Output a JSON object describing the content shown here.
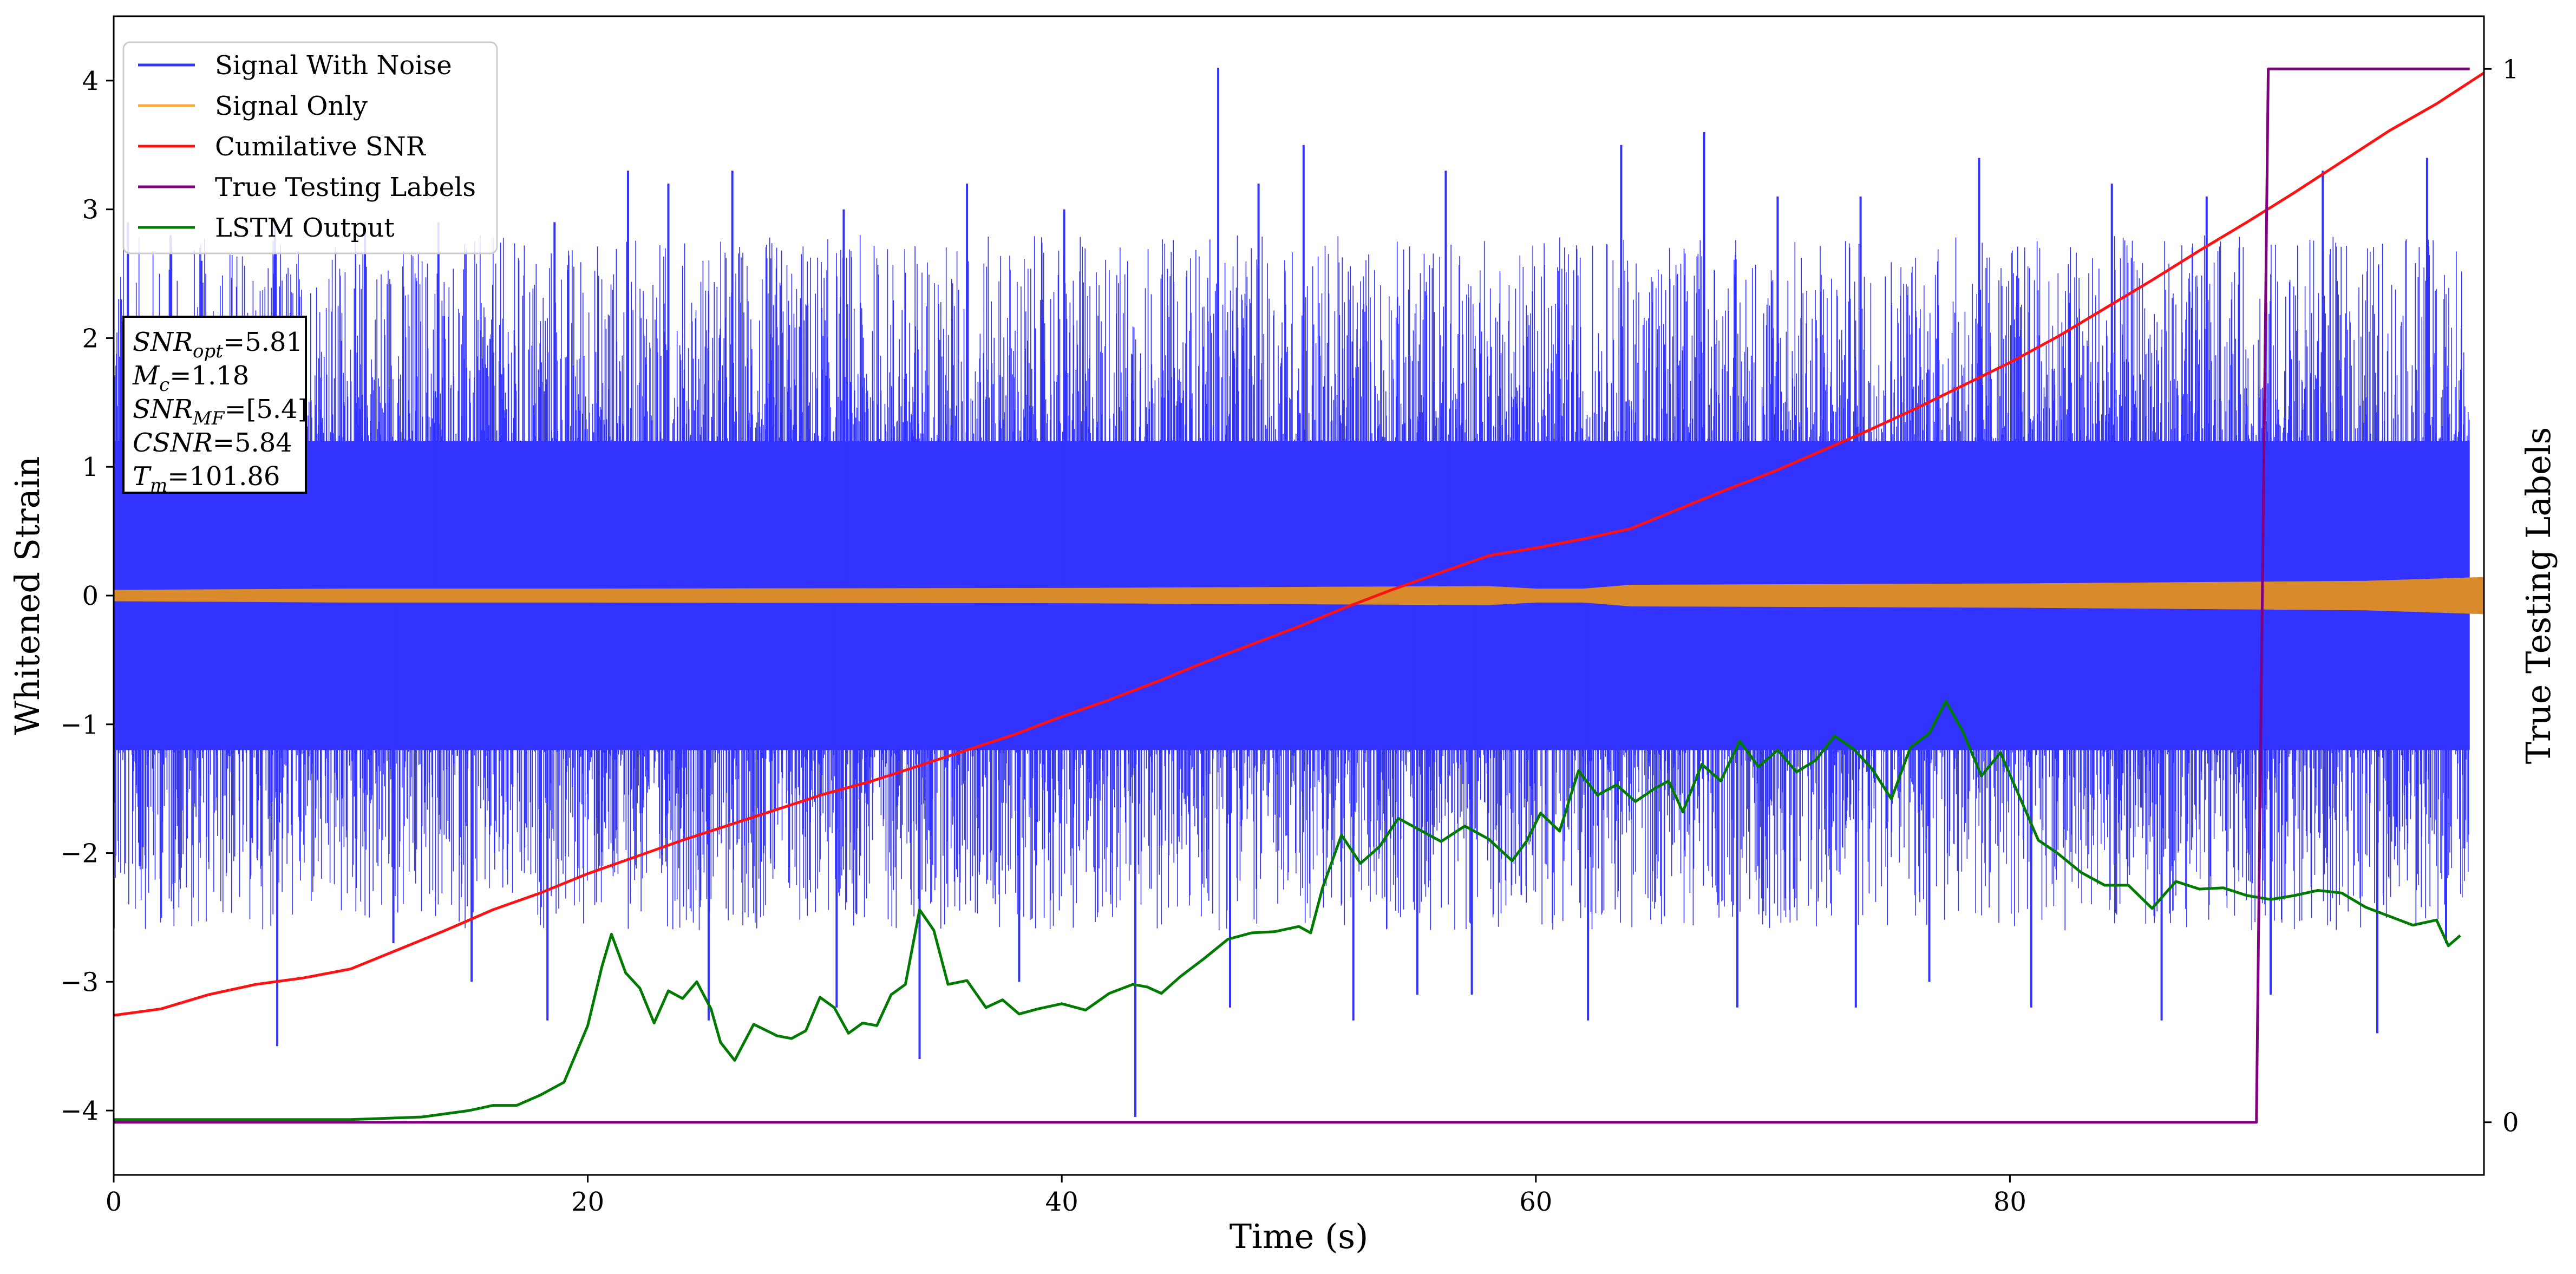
{
  "chart_data": {
    "type": "line",
    "xlabel": "Time (s)",
    "ylabel": "Whitened Strain",
    "ylabel_right": "True Testing Labels",
    "xlim": [
      0,
      100
    ],
    "ylim": [
      -4.5,
      4.5
    ],
    "ylim_right": [
      -0.05,
      1.05
    ],
    "x_ticks": [
      0,
      20,
      40,
      60,
      80
    ],
    "y_ticks": [
      -4,
      -3,
      -2,
      -1,
      0,
      1,
      2,
      3,
      4
    ],
    "y_ticks_right": [
      0,
      1
    ],
    "grid": false,
    "legend_position": "top-left",
    "legend": [
      "Signal With Noise",
      "Signal Only",
      "Cumilative SNR",
      "True Testing Labels",
      "LSTM Output"
    ],
    "info_box": {
      "snr_opt": {
        "base": "SNR",
        "sub": "opt",
        "value": "=5.81"
      },
      "mc": {
        "base": "M",
        "sub": "c",
        "value": "=1.18"
      },
      "snr_mf": {
        "base": "SNR",
        "sub": "MF",
        "value": "=[5.4]"
      },
      "csnr": {
        "base": "CSNR",
        "sub": "",
        "value": "=5.84"
      },
      "tm": {
        "base": "T",
        "sub": "m",
        "value": "=101.86"
      }
    },
    "series": [
      {
        "name": "Signal With Noise",
        "color": "#3333ff",
        "kind": "noise_band",
        "core_range": [
          -1.2,
          1.2
        ],
        "peak_max": 4.1,
        "peak_min": -4.1,
        "spikes": [
          {
            "x": 0.3,
            "y": 2.3
          },
          {
            "x": 0.6,
            "y": 2.9
          },
          {
            "x": 2.4,
            "y": 2.8
          },
          {
            "x": 3.7,
            "y": 2.6
          },
          {
            "x": 6.8,
            "y": 2.9
          },
          {
            "x": 10.6,
            "y": 2.9
          },
          {
            "x": 13.7,
            "y": 2.9
          },
          {
            "x": 18.6,
            "y": 2.9
          },
          {
            "x": 21.7,
            "y": 3.3
          },
          {
            "x": 23.4,
            "y": 3.2
          },
          {
            "x": 26.1,
            "y": 3.3
          },
          {
            "x": 30.8,
            "y": 3.0
          },
          {
            "x": 36.0,
            "y": 3.2
          },
          {
            "x": 40.1,
            "y": 3.0
          },
          {
            "x": 46.6,
            "y": 4.1
          },
          {
            "x": 48.3,
            "y": 3.2
          },
          {
            "x": 50.2,
            "y": 3.5
          },
          {
            "x": 56.2,
            "y": 3.3
          },
          {
            "x": 63.6,
            "y": 3.5
          },
          {
            "x": 67.1,
            "y": 3.6
          },
          {
            "x": 70.2,
            "y": 3.1
          },
          {
            "x": 73.7,
            "y": 3.1
          },
          {
            "x": 78.7,
            "y": 3.4
          },
          {
            "x": 84.3,
            "y": 3.2
          },
          {
            "x": 88.3,
            "y": 3.1
          },
          {
            "x": 93.2,
            "y": 3.3
          },
          {
            "x": 97.6,
            "y": 3.4
          },
          {
            "x": 1.1,
            "y": -2.1
          },
          {
            "x": 6.9,
            "y": -3.5
          },
          {
            "x": 11.8,
            "y": -2.7
          },
          {
            "x": 15.1,
            "y": -3.0
          },
          {
            "x": 18.3,
            "y": -3.3
          },
          {
            "x": 25.1,
            "y": -3.3
          },
          {
            "x": 30.5,
            "y": -3.2
          },
          {
            "x": 34.0,
            "y": -3.6
          },
          {
            "x": 38.2,
            "y": -3.0
          },
          {
            "x": 43.1,
            "y": -4.05
          },
          {
            "x": 47.1,
            "y": -3.2
          },
          {
            "x": 52.3,
            "y": -3.3
          },
          {
            "x": 55.0,
            "y": -3.1
          },
          {
            "x": 57.3,
            "y": -3.1
          },
          {
            "x": 62.2,
            "y": -3.3
          },
          {
            "x": 68.5,
            "y": -3.2
          },
          {
            "x": 73.5,
            "y": -3.2
          },
          {
            "x": 76.6,
            "y": -3.0
          },
          {
            "x": 80.9,
            "y": -3.2
          },
          {
            "x": 86.4,
            "y": -3.3
          },
          {
            "x": 91.0,
            "y": -3.1
          },
          {
            "x": 95.5,
            "y": -3.4
          },
          {
            "x": 98.4,
            "y": -2.7
          }
        ]
      },
      {
        "name": "Signal Only",
        "color": "#d98a2b",
        "legend_color": "#ffaa33",
        "kind": "envelope",
        "x": [
          0,
          10,
          20,
          40,
          58,
          60,
          62,
          64,
          80,
          95,
          100
        ],
        "upper": [
          0.04,
          0.05,
          0.05,
          0.055,
          0.07,
          0.05,
          0.05,
          0.08,
          0.09,
          0.11,
          0.14
        ],
        "lower": [
          -0.04,
          -0.05,
          -0.05,
          -0.055,
          -0.07,
          -0.05,
          -0.05,
          -0.08,
          -0.09,
          -0.11,
          -0.14
        ]
      },
      {
        "name": "Cumilative SNR",
        "color": "#ff1111",
        "x": [
          0,
          2,
          4,
          6,
          8,
          10,
          12,
          14,
          16,
          18,
          20,
          22,
          24,
          26,
          28,
          30,
          32,
          34,
          36,
          38,
          40,
          42,
          44,
          46,
          48,
          50,
          52,
          54,
          56,
          58,
          60,
          62,
          64,
          66,
          68,
          70,
          72,
          74,
          76,
          78,
          80,
          82,
          84,
          86,
          88,
          90,
          92,
          94,
          96,
          98,
          100
        ],
        "values": [
          -3.26,
          -3.21,
          -3.1,
          -3.02,
          -2.97,
          -2.9,
          -2.75,
          -2.6,
          -2.44,
          -2.31,
          -2.16,
          -2.03,
          -1.9,
          -1.78,
          -1.66,
          -1.54,
          -1.44,
          -1.32,
          -1.2,
          -1.08,
          -0.94,
          -0.81,
          -0.67,
          -0.52,
          -0.38,
          -0.24,
          -0.09,
          0.05,
          0.18,
          0.31,
          0.37,
          0.44,
          0.52,
          0.67,
          0.82,
          0.96,
          1.12,
          1.28,
          1.45,
          1.63,
          1.81,
          2.01,
          2.23,
          2.45,
          2.68,
          2.9,
          3.13,
          3.37,
          3.61,
          3.82,
          4.06
        ]
      },
      {
        "name": "True Testing Labels",
        "color": "#800080",
        "axis": "right",
        "x": [
          0,
          90.4,
          90.9,
          99.4
        ],
        "values": [
          0,
          0,
          1,
          1
        ]
      },
      {
        "name": "LSTM Output",
        "color": "#007a00",
        "x": [
          0,
          5,
          10,
          13,
          15,
          16,
          17,
          18,
          19,
          20,
          20.6,
          21,
          21.6,
          22.2,
          22.8,
          23.4,
          24.0,
          24.6,
          25.2,
          25.6,
          26.2,
          27.0,
          28.0,
          28.6,
          29.2,
          29.8,
          30.4,
          31.0,
          31.6,
          32.2,
          32.8,
          33.4,
          34.0,
          34.6,
          35.2,
          36.0,
          36.8,
          37.5,
          38.2,
          39.0,
          40.0,
          41.0,
          42.0,
          43.0,
          43.6,
          44.2,
          45.0,
          46.0,
          47.0,
          48.0,
          49.0,
          50.0,
          50.5,
          51.0,
          51.8,
          52.6,
          53.4,
          54.2,
          55.0,
          56.0,
          57.0,
          58.0,
          59.0,
          59.6,
          60.2,
          61.0,
          61.8,
          62.6,
          63.4,
          64.2,
          65.0,
          65.6,
          66.2,
          67.0,
          67.8,
          68.6,
          69.4,
          70.2,
          71.0,
          71.8,
          72.6,
          73.4,
          74.2,
          75.0,
          75.8,
          76.6,
          77.3,
          78.0,
          78.8,
          79.6,
          80.4,
          81.2,
          82.0,
          83.0,
          84.0,
          85.0,
          86.0,
          87.0,
          88.0,
          89.0,
          90.0,
          91.0,
          92.0,
          93.0,
          94.0,
          95.0,
          96.0,
          97.0,
          98.0,
          98.5,
          99.0
        ],
        "values": [
          -4.07,
          -4.07,
          -4.07,
          -4.05,
          -4.0,
          -3.96,
          -3.96,
          -3.88,
          -3.78,
          -3.34,
          -2.88,
          -2.63,
          -2.93,
          -3.05,
          -3.32,
          -3.07,
          -3.13,
          -3.0,
          -3.21,
          -3.47,
          -3.61,
          -3.33,
          -3.42,
          -3.44,
          -3.38,
          -3.12,
          -3.2,
          -3.4,
          -3.32,
          -3.34,
          -3.1,
          -3.02,
          -2.44,
          -2.6,
          -3.02,
          -2.99,
          -3.2,
          -3.14,
          -3.25,
          -3.21,
          -3.17,
          -3.22,
          -3.09,
          -3.02,
          -3.04,
          -3.09,
          -2.96,
          -2.82,
          -2.67,
          -2.62,
          -2.61,
          -2.57,
          -2.62,
          -2.27,
          -1.86,
          -2.08,
          -1.95,
          -1.73,
          -1.81,
          -1.91,
          -1.79,
          -1.89,
          -2.06,
          -1.91,
          -1.69,
          -1.83,
          -1.36,
          -1.55,
          -1.47,
          -1.6,
          -1.5,
          -1.44,
          -1.68,
          -1.31,
          -1.44,
          -1.13,
          -1.33,
          -1.2,
          -1.37,
          -1.28,
          -1.09,
          -1.19,
          -1.35,
          -1.58,
          -1.18,
          -1.07,
          -0.82,
          -1.05,
          -1.4,
          -1.22,
          -1.56,
          -1.9,
          -2.0,
          -2.15,
          -2.25,
          -2.25,
          -2.43,
          -2.22,
          -2.28,
          -2.27,
          -2.33,
          -2.36,
          -2.33,
          -2.29,
          -2.31,
          -2.42,
          -2.49,
          -2.56,
          -2.52,
          -2.72,
          -2.64
        ]
      }
    ]
  }
}
